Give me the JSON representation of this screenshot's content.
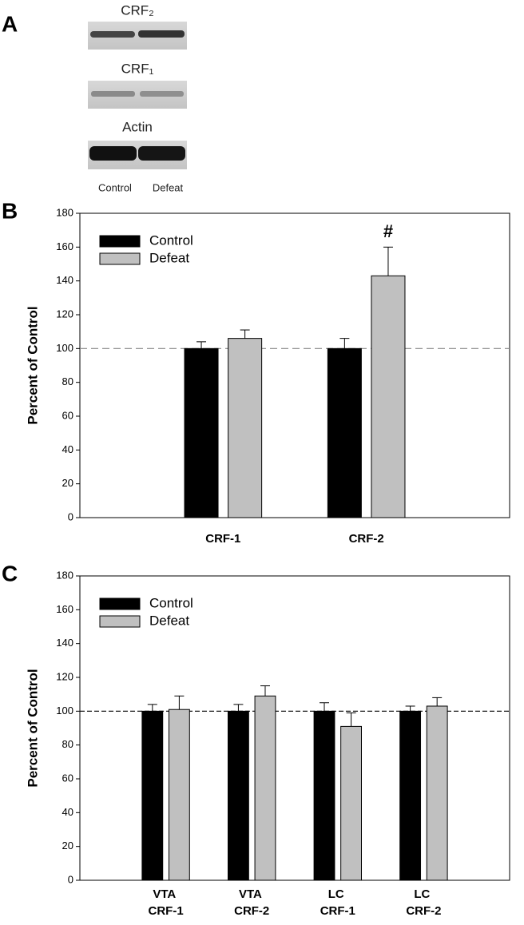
{
  "panel_labels": [
    "A",
    "B",
    "C"
  ],
  "blot": {
    "bands": [
      "CRF₂",
      "CRF₁",
      "Actin"
    ],
    "lanes": [
      "Control",
      "Defeat"
    ]
  },
  "chart_data": [
    {
      "type": "bar",
      "ylabel": "Percent of Control",
      "categories": [
        "CRF-1",
        "CRF-2"
      ],
      "series": [
        {
          "name": "Control",
          "color": "#000000",
          "values": [
            100,
            100
          ],
          "errors": [
            4,
            6
          ]
        },
        {
          "name": "Defeat",
          "color": "#c0c0c0",
          "values": [
            106,
            143
          ],
          "errors": [
            5,
            17
          ]
        }
      ],
      "ylim": [
        0,
        180
      ],
      "yticks": [
        0,
        20,
        40,
        60,
        80,
        100,
        120,
        140,
        160,
        180
      ],
      "reference_line": 100,
      "annotation": "#",
      "legend": "upper left"
    },
    {
      "type": "bar",
      "ylabel": "Percent of Control",
      "categories": [
        "VTA CRF-1",
        "VTA CRF-2",
        "LC CRF-1",
        "LC CRF-2"
      ],
      "series": [
        {
          "name": "Control",
          "color": "#000000",
          "values": [
            100,
            100,
            100,
            100
          ],
          "errors": [
            4,
            4,
            5,
            3
          ]
        },
        {
          "name": "Defeat",
          "color": "#c0c0c0",
          "values": [
            101,
            109,
            91,
            103
          ],
          "errors": [
            8,
            6,
            8,
            5
          ]
        }
      ],
      "ylim": [
        0,
        180
      ],
      "yticks": [
        0,
        20,
        40,
        60,
        80,
        100,
        120,
        140,
        160,
        180
      ],
      "reference_line": 100,
      "legend": "upper left"
    }
  ]
}
